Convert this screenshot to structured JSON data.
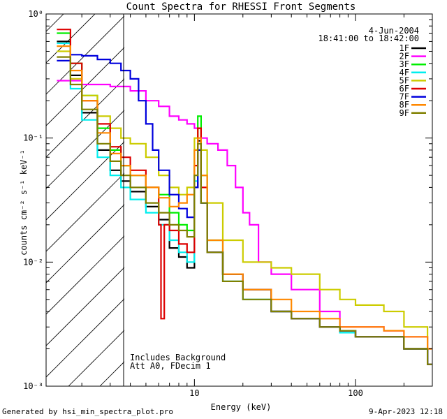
{
  "chart_data": {
    "type": "line",
    "title": "Count Spectra for RHESSI Front Segments",
    "xlabel": "Energy (keV)",
    "ylabel": "counts cm⁻² s⁻¹ keV⁻¹",
    "xscale": "log",
    "yscale": "log",
    "xlim": [
      1.2,
      300
    ],
    "ylim": [
      0.001,
      1
    ],
    "x_ticks": [
      {
        "value": 10,
        "label": "10"
      },
      {
        "value": 100,
        "label": "100"
      }
    ],
    "y_ticks": [
      {
        "value": 1,
        "label": "10⁰"
      },
      {
        "value": 0.1,
        "label": "10⁻¹"
      },
      {
        "value": 0.01,
        "label": "10⁻²"
      },
      {
        "value": 0.001,
        "label": "10⁻³"
      }
    ],
    "hatched_region": {
      "x_from": 1.2,
      "x_to": 3
    },
    "date_label": "4-Jun-2004",
    "time_label": "18:41:00 to 18:42:00",
    "annotations": [
      "Includes Background",
      "Att A0, FDecim 1"
    ],
    "series": [
      {
        "name": "1F",
        "color": "#000000",
        "points": [
          [
            1.4,
            0.6
          ],
          [
            1.7,
            0.32
          ],
          [
            2.0,
            0.16
          ],
          [
            2.5,
            0.08
          ],
          [
            3,
            0.055
          ],
          [
            3.5,
            0.045
          ],
          [
            4,
            0.037
          ],
          [
            5,
            0.028
          ],
          [
            6,
            0.022
          ],
          [
            7,
            0.013
          ],
          [
            8,
            0.011
          ],
          [
            9,
            0.009
          ],
          [
            10,
            0.04
          ],
          [
            10.5,
            0.095
          ],
          [
            11,
            0.03
          ],
          [
            12,
            0.012
          ],
          [
            15,
            0.008
          ],
          [
            20,
            0.006
          ],
          [
            30,
            0.004
          ],
          [
            40,
            0.0035
          ],
          [
            60,
            0.003
          ],
          [
            80,
            0.0028
          ],
          [
            100,
            0.0025
          ],
          [
            150,
            0.0025
          ],
          [
            200,
            0.002
          ],
          [
            280,
            0.0015
          ]
        ]
      },
      {
        "name": "2F",
        "color": "#ff00ff",
        "points": [
          [
            1.4,
            0.29
          ],
          [
            2,
            0.27
          ],
          [
            3,
            0.26
          ],
          [
            4,
            0.24
          ],
          [
            5,
            0.2
          ],
          [
            6,
            0.18
          ],
          [
            7,
            0.15
          ],
          [
            8,
            0.14
          ],
          [
            9,
            0.13
          ],
          [
            10,
            0.12
          ],
          [
            11,
            0.1
          ],
          [
            12,
            0.09
          ],
          [
            14,
            0.08
          ],
          [
            16,
            0.06
          ],
          [
            18,
            0.04
          ],
          [
            20,
            0.025
          ],
          [
            22,
            0.02
          ],
          [
            25,
            0.01
          ],
          [
            30,
            0.008
          ],
          [
            40,
            0.006
          ],
          [
            60,
            0.004
          ],
          [
            80,
            0.003
          ],
          [
            100,
            0.003
          ],
          [
            150,
            0.0028
          ],
          [
            200,
            0.0025
          ],
          [
            280,
            0.002
          ]
        ]
      },
      {
        "name": "3F",
        "color": "#00ee00",
        "points": [
          [
            1.4,
            0.7
          ],
          [
            1.7,
            0.4
          ],
          [
            2,
            0.22
          ],
          [
            2.5,
            0.12
          ],
          [
            3,
            0.08
          ],
          [
            3.5,
            0.06
          ],
          [
            4,
            0.05
          ],
          [
            5,
            0.04
          ],
          [
            6,
            0.035
          ],
          [
            7,
            0.025
          ],
          [
            8,
            0.02
          ],
          [
            9,
            0.018
          ],
          [
            10,
            0.08
          ],
          [
            10.5,
            0.15
          ],
          [
            11,
            0.05
          ],
          [
            12,
            0.015
          ],
          [
            15,
            0.008
          ],
          [
            20,
            0.006
          ],
          [
            30,
            0.004
          ],
          [
            40,
            0.0035
          ],
          [
            60,
            0.003
          ],
          [
            80,
            0.0028
          ],
          [
            100,
            0.0025
          ],
          [
            150,
            0.0025
          ],
          [
            200,
            0.002
          ],
          [
            280,
            0.0015
          ]
        ]
      },
      {
        "name": "4F",
        "color": "#00eeee",
        "points": [
          [
            1.4,
            0.58
          ],
          [
            1.7,
            0.25
          ],
          [
            2,
            0.14
          ],
          [
            2.5,
            0.07
          ],
          [
            3,
            0.05
          ],
          [
            3.5,
            0.04
          ],
          [
            4,
            0.032
          ],
          [
            5,
            0.025
          ],
          [
            6,
            0.02
          ],
          [
            7,
            0.015
          ],
          [
            8,
            0.012
          ],
          [
            9,
            0.01
          ],
          [
            10,
            0.045
          ],
          [
            10.5,
            0.08
          ],
          [
            11,
            0.03
          ],
          [
            12,
            0.012
          ],
          [
            15,
            0.007
          ],
          [
            20,
            0.005
          ],
          [
            30,
            0.004
          ],
          [
            40,
            0.0035
          ],
          [
            60,
            0.003
          ],
          [
            80,
            0.0027
          ],
          [
            100,
            0.0025
          ],
          [
            150,
            0.0025
          ],
          [
            200,
            0.002
          ],
          [
            280,
            0.0015
          ]
        ]
      },
      {
        "name": "5F",
        "color": "#cccc00",
        "points": [
          [
            1.4,
            0.5
          ],
          [
            1.7,
            0.3
          ],
          [
            2,
            0.22
          ],
          [
            2.5,
            0.15
          ],
          [
            3,
            0.12
          ],
          [
            3.5,
            0.1
          ],
          [
            4,
            0.09
          ],
          [
            5,
            0.07
          ],
          [
            6,
            0.05
          ],
          [
            7,
            0.04
          ],
          [
            8,
            0.035
          ],
          [
            9,
            0.04
          ],
          [
            10,
            0.1
          ],
          [
            10.5,
            0.12
          ],
          [
            11,
            0.08
          ],
          [
            12,
            0.03
          ],
          [
            15,
            0.015
          ],
          [
            20,
            0.01
          ],
          [
            30,
            0.009
          ],
          [
            40,
            0.008
          ],
          [
            60,
            0.006
          ],
          [
            80,
            0.005
          ],
          [
            100,
            0.0045
          ],
          [
            150,
            0.004
          ],
          [
            200,
            0.003
          ],
          [
            280,
            0.002
          ]
        ]
      },
      {
        "name": "6F",
        "color": "#dd0000",
        "points": [
          [
            1.4,
            0.75
          ],
          [
            1.7,
            0.4
          ],
          [
            2,
            0.2
          ],
          [
            2.5,
            0.13
          ],
          [
            3,
            0.085
          ],
          [
            3.5,
            0.07
          ],
          [
            4,
            0.055
          ],
          [
            5,
            0.04
          ],
          [
            6,
            0.02
          ],
          [
            6.2,
            0.0035
          ],
          [
            6.5,
            0.02
          ],
          [
            7,
            0.018
          ],
          [
            8,
            0.014
          ],
          [
            9,
            0.012
          ],
          [
            10,
            0.06
          ],
          [
            10.5,
            0.12
          ],
          [
            11,
            0.04
          ],
          [
            12,
            0.012
          ],
          [
            15,
            0.008
          ],
          [
            20,
            0.006
          ],
          [
            30,
            0.004
          ],
          [
            40,
            0.0035
          ],
          [
            60,
            0.003
          ],
          [
            80,
            0.0028
          ],
          [
            100,
            0.0025
          ],
          [
            150,
            0.0025
          ],
          [
            200,
            0.002
          ],
          [
            280,
            0.0015
          ]
        ]
      },
      {
        "name": "7F",
        "color": "#0000dd",
        "points": [
          [
            1.4,
            0.42
          ],
          [
            1.7,
            0.47
          ],
          [
            2,
            0.46
          ],
          [
            2.5,
            0.43
          ],
          [
            3,
            0.4
          ],
          [
            3.5,
            0.35
          ],
          [
            4,
            0.3
          ],
          [
            4.5,
            0.2
          ],
          [
            5,
            0.13
          ],
          [
            5.5,
            0.08
          ],
          [
            6,
            0.055
          ],
          [
            7,
            0.035
          ],
          [
            8,
            0.027
          ],
          [
            9,
            0.023
          ],
          [
            10,
            0.04
          ],
          [
            10.5,
            0.08
          ],
          [
            11,
            0.03
          ],
          [
            12,
            0.012
          ],
          [
            15,
            0.008
          ],
          [
            20,
            0.006
          ],
          [
            30,
            0.004
          ],
          [
            40,
            0.0035
          ],
          [
            60,
            0.003
          ],
          [
            80,
            0.0028
          ],
          [
            100,
            0.0025
          ],
          [
            150,
            0.0025
          ],
          [
            200,
            0.002
          ],
          [
            280,
            0.0015
          ]
        ]
      },
      {
        "name": "8F",
        "color": "#ff8800",
        "points": [
          [
            1.4,
            0.55
          ],
          [
            1.7,
            0.35
          ],
          [
            2,
            0.2
          ],
          [
            2.5,
            0.11
          ],
          [
            3,
            0.075
          ],
          [
            3.5,
            0.06
          ],
          [
            4,
            0.05
          ],
          [
            5,
            0.04
          ],
          [
            6,
            0.033
          ],
          [
            7,
            0.028
          ],
          [
            8,
            0.03
          ],
          [
            9,
            0.035
          ],
          [
            10,
            0.08
          ],
          [
            10.5,
            0.1
          ],
          [
            11,
            0.05
          ],
          [
            12,
            0.015
          ],
          [
            15,
            0.008
          ],
          [
            20,
            0.006
          ],
          [
            30,
            0.005
          ],
          [
            40,
            0.004
          ],
          [
            60,
            0.0035
          ],
          [
            80,
            0.003
          ],
          [
            100,
            0.003
          ],
          [
            150,
            0.0028
          ],
          [
            200,
            0.0025
          ],
          [
            280,
            0.002
          ]
        ]
      },
      {
        "name": "9F",
        "color": "#808000",
        "points": [
          [
            1.4,
            0.45
          ],
          [
            1.7,
            0.27
          ],
          [
            2,
            0.17
          ],
          [
            2.5,
            0.09
          ],
          [
            3,
            0.065
          ],
          [
            3.5,
            0.05
          ],
          [
            4,
            0.04
          ],
          [
            5,
            0.03
          ],
          [
            6,
            0.025
          ],
          [
            7,
            0.02
          ],
          [
            8,
            0.018
          ],
          [
            9,
            0.016
          ],
          [
            10,
            0.05
          ],
          [
            10.5,
            0.09
          ],
          [
            11,
            0.03
          ],
          [
            12,
            0.012
          ],
          [
            15,
            0.007
          ],
          [
            20,
            0.005
          ],
          [
            30,
            0.004
          ],
          [
            40,
            0.0035
          ],
          [
            60,
            0.003
          ],
          [
            80,
            0.0028
          ],
          [
            100,
            0.0025
          ],
          [
            150,
            0.0025
          ],
          [
            200,
            0.002
          ],
          [
            280,
            0.0015
          ]
        ]
      }
    ]
  },
  "footer": {
    "generated_by": "Generated by hsi_min_spectra_plot.pro",
    "date": "9-Apr-2023 12:18"
  }
}
